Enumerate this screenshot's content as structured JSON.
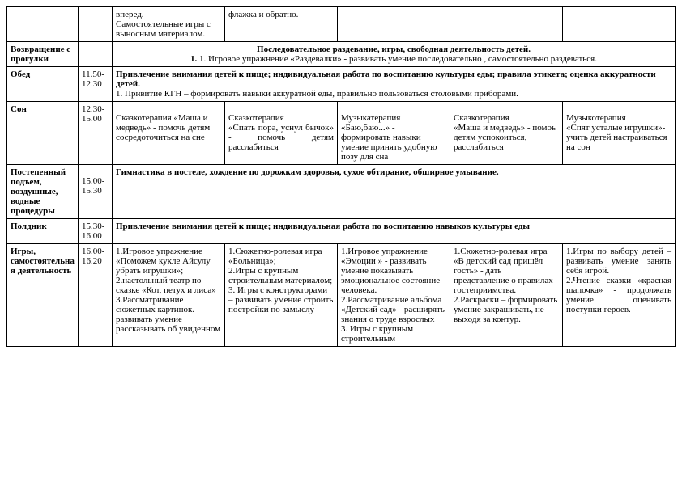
{
  "rows": {
    "r0": {
      "label": "",
      "time": "",
      "c1": "вперед.\nСамостоятельные игры с выносным материалом.",
      "c2": "флажка и обратно.",
      "c3": "",
      "c4": "",
      "c5": ""
    },
    "r1": {
      "label": "Возвращение с прогулки",
      "time": "",
      "merged_bold": "Последовательное раздевание, игры, свободная деятельность детей.",
      "merged_text": "1. Игровое упражнение «Раздевалки» - развивать умение последовательно , самостоятельно раздеваться."
    },
    "r2": {
      "label": "Обед",
      "time": "11.50- 12.30",
      "merged_bold": "Привлечение внимания детей к пище; индивидуальная работа по воспитанию культуры еды; правила этикета; оценка аккуратности детей.",
      "merged_text": "1. Привитие КГН – формировать навыки аккуратной еды, правильно пользоваться столовыми приборами."
    },
    "r3": {
      "label": "Сон",
      "time": "12.30- 15.00",
      "c1": "Сказкотерапия  «Маша и медведь» - помочь детям сосредоточиться на сне",
      "c2": "Сказкотерапия\n«Спать пора, уснул бычок» - помочь детям расслабиться",
      "c3": "Музыкатерапия «Баю,баю...» - формировать навыки умение принять удобную позу для сна",
      "c4": "Сказкотерапия\n «Маша и медведь» - помоь детям успокоиться, расслабиться",
      "c5": "Музыкотерапия\n«Спят усталые игрушки»- учить детей настраиваться на сон"
    },
    "r4": {
      "label": "Постепенный подъем, воздушные, водные процедуры",
      "time": "15.00- 15.30",
      "merged_bold": "Гимнастика в постеле, хождение по дорожкам здоровья, сухое обтирание, обширное умывание."
    },
    "r5": {
      "label": "Полдник",
      "time": "15.30- 16.00",
      "merged_bold": "Привлечение внимания детей к пище; индивидуальная работа по воспитанию навыков культуры еды"
    },
    "r6": {
      "label": "Игры, самостоятельная деятельность",
      "time": "16.00- 16.20",
      "c1": "1.Игровое упражнение «Поможем кукле Айсулу убрать игрушки»;\n  2.настольный театр по сказке «Кот, петух и лиса»\n 3.Рассматривание сюжетных картинок.- развивать умение рассказывать об увиденном",
      "c2": "1.Сюжетно-ролевая игра «Больница»;\n2.Игры с крупным строительным материалом;\n3. Игры с конструкторами – развивать умение строить постройки по замыслу",
      "c3": "1.Игровое упражнение «Эмоции » - развивать умение показывать эмоциональное состояние человека.\n 2.Рассматривание альбома «Детский сад» - расширять знания о труде взрослых\n3. Игры с крупным строительным",
      "c4": "1.Сюжетно-ролевая игра «В детский сад пришёл гость» -  дать представление о правилах гостеприимства.\n2.Раскраски – формировать умение закрашивать, не выходя за контур.",
      "c5": "1.Игры по выбору детей – развивать умение занять себя игрой.\n2.Чтение сказки «красная шапочка» - продолжать умение оценивать поступки героев."
    }
  }
}
